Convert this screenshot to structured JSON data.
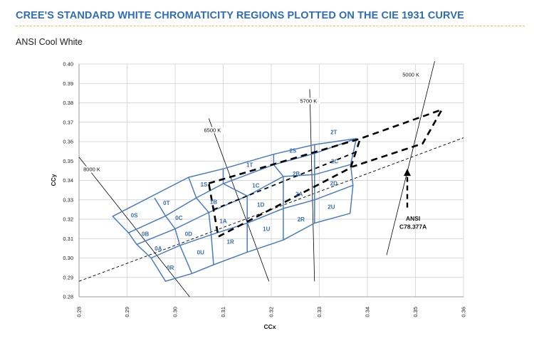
{
  "header": {
    "title": "CREE'S STANDARD WHITE CHROMATICITY REGIONS PLOTTED ON THE CIE 1931 CURVE",
    "subtitle": "ANSI Cool White"
  },
  "colors": {
    "title": "#2f6eb5",
    "grid": "#cccccc",
    "region": "#4a7cc4",
    "ansi": "#000000"
  },
  "chart_data": {
    "type": "scatter",
    "xlabel": "CCx",
    "ylabel": "CCy",
    "xlim": [
      0.28,
      0.36
    ],
    "ylim": [
      0.28,
      0.4
    ],
    "xticks": [
      "0.28",
      "0.29",
      "0.30",
      "0.31",
      "0.32",
      "0.33",
      "0.34",
      "0.35",
      "0.36"
    ],
    "yticks": [
      "0.28",
      "0.29",
      "0.30",
      "0.31",
      "0.32",
      "0.33",
      "0.34",
      "0.35",
      "0.36",
      "0.37",
      "0.38",
      "0.39",
      "0.40"
    ],
    "grid": true,
    "mesh": {
      "columns": [
        [
          [
            0.287,
            0.3215
          ],
          [
            0.2957,
            0.331
          ],
          [
            0.3028,
            0.3416
          ],
          [
            0.3028,
            0.3416
          ]
        ],
        [
          [
            0.2903,
            0.313
          ],
          [
            0.298,
            0.3217
          ],
          [
            0.3044,
            0.331
          ],
          [
            0.31,
            0.3383
          ]
        ],
        [
          [
            0.292,
            0.307
          ],
          [
            0.3,
            0.315
          ],
          [
            0.307,
            0.3235
          ],
          [
            0.315,
            0.332
          ]
        ],
        [
          [
            0.295,
            0.3
          ],
          [
            0.301,
            0.3065
          ],
          [
            0.3075,
            0.312
          ],
          [
            0.315,
            0.318
          ]
        ],
        [
          [
            0.298,
            0.288
          ],
          [
            0.3035,
            0.292
          ],
          [
            0.308,
            0.2965
          ],
          [
            0.315,
            0.303
          ]
        ],
        [
          [
            0.298,
            0.288
          ],
          [
            0.3035,
            0.292
          ],
          [
            0.308,
            0.2965
          ],
          [
            0.315,
            0.303
          ]
        ]
      ],
      "extra_cols": [
        [
          [
            0.31,
            0.3383
          ],
          [
            0.3205,
            0.3481
          ],
          [
            0.329,
            0.3539
          ],
          [
            0.3377,
            0.3616
          ]
        ],
        [
          [
            0.315,
            0.332
          ],
          [
            0.3225,
            0.342
          ],
          [
            0.329,
            0.343
          ],
          [
            0.3365,
            0.3482
          ]
        ],
        [
          [
            0.315,
            0.318
          ],
          [
            0.3225,
            0.3255
          ],
          [
            0.329,
            0.33
          ],
          [
            0.337,
            0.3375
          ]
        ],
        [
          [
            0.315,
            0.303
          ],
          [
            0.3225,
            0.3093
          ],
          [
            0.329,
            0.318
          ],
          [
            0.3364,
            0.323
          ]
        ]
      ],
      "top_edge": [
        [
          0.3028,
          0.3416
        ],
        [
          0.31,
          0.346
        ],
        [
          0.3205,
          0.3535
        ],
        [
          0.329,
          0.3585
        ],
        [
          0.3377,
          0.3616
        ]
      ]
    },
    "regions": [
      {
        "label": "0S",
        "x": 0.2915,
        "y": 0.322
      },
      {
        "label": "0T",
        "x": 0.2982,
        "y": 0.3285
      },
      {
        "label": "0B",
        "x": 0.2938,
        "y": 0.3125
      },
      {
        "label": "0C",
        "x": 0.3008,
        "y": 0.3208
      },
      {
        "label": "0A",
        "x": 0.2965,
        "y": 0.305
      },
      {
        "label": "0D",
        "x": 0.3028,
        "y": 0.3125
      },
      {
        "label": "0R",
        "x": 0.299,
        "y": 0.295
      },
      {
        "label": "0U",
        "x": 0.3053,
        "y": 0.303
      },
      {
        "label": "1S",
        "x": 0.306,
        "y": 0.338
      },
      {
        "label": "1B",
        "x": 0.308,
        "y": 0.329
      },
      {
        "label": "1A",
        "x": 0.31,
        "y": 0.319
      },
      {
        "label": "1R",
        "x": 0.3115,
        "y": 0.3085
      },
      {
        "label": "1T",
        "x": 0.3155,
        "y": 0.348
      },
      {
        "label": "1C",
        "x": 0.3168,
        "y": 0.3375
      },
      {
        "label": "1D",
        "x": 0.3178,
        "y": 0.3275
      },
      {
        "label": "1U",
        "x": 0.319,
        "y": 0.315
      },
      {
        "label": "2S",
        "x": 0.3245,
        "y": 0.3555
      },
      {
        "label": "2B",
        "x": 0.3252,
        "y": 0.3435
      },
      {
        "label": "2A",
        "x": 0.3258,
        "y": 0.333
      },
      {
        "label": "2R",
        "x": 0.3262,
        "y": 0.32
      },
      {
        "label": "2T",
        "x": 0.333,
        "y": 0.365
      },
      {
        "label": "2C",
        "x": 0.3332,
        "y": 0.35
      },
      {
        "label": "2D",
        "x": 0.333,
        "y": 0.3385
      },
      {
        "label": "2U",
        "x": 0.3325,
        "y": 0.3265
      }
    ],
    "ansi_quadrangle": [
      [
        0.307,
        0.3385
      ],
      [
        0.3385,
        0.3615
      ],
      [
        0.3365,
        0.3465
      ],
      [
        0.309,
        0.311
      ]
    ],
    "ansi_extra": [
      [
        0.339,
        0.362
      ],
      [
        0.3555,
        0.3765
      ],
      [
        0.3515,
        0.359
      ],
      [
        0.3368,
        0.347
      ]
    ],
    "ansi_mid": [
      [
        0.308,
        0.325
      ],
      [
        0.3375,
        0.3545
      ]
    ],
    "black_body": [
      [
        0.28,
        0.288
      ],
      [
        0.36,
        0.362
      ]
    ],
    "isotherms": [
      {
        "label": "8000 K",
        "from": [
          0.28,
          0.352
        ],
        "to": [
          0.303,
          0.28
        ],
        "lx": 0.2809,
        "ly": 0.3447
      },
      {
        "label": "6500 K",
        "from": [
          0.307,
          0.372
        ],
        "to": [
          0.3195,
          0.288
        ],
        "lx": 0.306,
        "ly": 0.365
      },
      {
        "label": "5700 K",
        "from": [
          0.328,
          0.387
        ],
        "to": [
          0.329,
          0.288
        ],
        "lx": 0.326,
        "ly": 0.38
      },
      {
        "label": "5000 K",
        "from": [
          0.344,
          0.3015
        ],
        "to": [
          0.354,
          0.4015
        ],
        "lx": 0.3473,
        "ly": 0.3935
      }
    ],
    "annotations": [
      {
        "label": "ANSI",
        "x": 0.3495,
        "y": 0.3193
      },
      {
        "label": "C78.377A",
        "x": 0.3495,
        "y": 0.315
      }
    ]
  }
}
